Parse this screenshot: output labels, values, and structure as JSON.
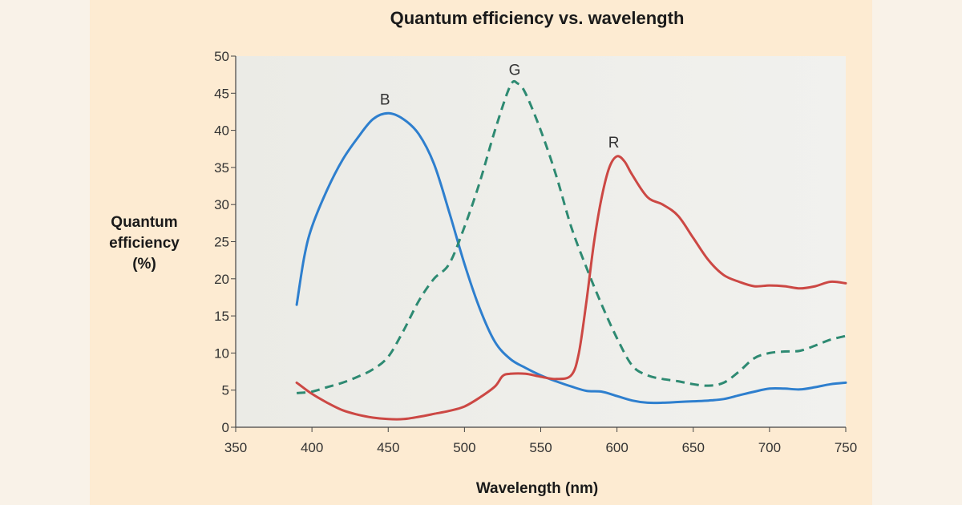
{
  "chart_data": {
    "type": "line",
    "title": "Quantum efficiency vs. wavelength",
    "xlabel": "Wavelength (nm)",
    "ylabel": [
      "Quantum",
      "efficiency",
      "(%)"
    ],
    "xlim": [
      350,
      750
    ],
    "ylim": [
      0,
      50
    ],
    "xticks": [
      350,
      400,
      450,
      500,
      550,
      600,
      650,
      700,
      750
    ],
    "yticks": [
      0,
      5,
      10,
      15,
      20,
      25,
      30,
      35,
      40,
      45,
      50
    ],
    "grid": false,
    "colors": {
      "B": "#2e7fce",
      "G": "#2e8a72",
      "R": "#cc4844",
      "plot_bg": "#eeeeea"
    },
    "series": [
      {
        "name": "B",
        "style": "solid",
        "points": [
          [
            390,
            16.5
          ],
          [
            395,
            23
          ],
          [
            400,
            27
          ],
          [
            410,
            32
          ],
          [
            420,
            36
          ],
          [
            430,
            39
          ],
          [
            440,
            41.5
          ],
          [
            450,
            42.3
          ],
          [
            460,
            41.5
          ],
          [
            470,
            39.5
          ],
          [
            480,
            35.5
          ],
          [
            490,
            29
          ],
          [
            500,
            22
          ],
          [
            510,
            16
          ],
          [
            520,
            11.5
          ],
          [
            530,
            9.2
          ],
          [
            540,
            8
          ],
          [
            550,
            7
          ],
          [
            560,
            6.2
          ],
          [
            570,
            5.5
          ],
          [
            580,
            4.9
          ],
          [
            590,
            4.8
          ],
          [
            600,
            4.2
          ],
          [
            610,
            3.6
          ],
          [
            620,
            3.3
          ],
          [
            630,
            3.3
          ],
          [
            640,
            3.4
          ],
          [
            650,
            3.5
          ],
          [
            660,
            3.6
          ],
          [
            670,
            3.8
          ],
          [
            680,
            4.3
          ],
          [
            690,
            4.8
          ],
          [
            700,
            5.2
          ],
          [
            710,
            5.2
          ],
          [
            720,
            5.1
          ],
          [
            730,
            5.4
          ],
          [
            740,
            5.8
          ],
          [
            750,
            6
          ]
        ]
      },
      {
        "name": "G",
        "style": "dashed",
        "points": [
          [
            390,
            4.6
          ],
          [
            400,
            4.8
          ],
          [
            410,
            5.4
          ],
          [
            420,
            6
          ],
          [
            430,
            6.8
          ],
          [
            440,
            7.8
          ],
          [
            450,
            9.5
          ],
          [
            460,
            13
          ],
          [
            470,
            17
          ],
          [
            480,
            20
          ],
          [
            490,
            22
          ],
          [
            500,
            27
          ],
          [
            510,
            33
          ],
          [
            520,
            40
          ],
          [
            530,
            46
          ],
          [
            535,
            46.3
          ],
          [
            540,
            45
          ],
          [
            550,
            40
          ],
          [
            560,
            34
          ],
          [
            570,
            27
          ],
          [
            580,
            21.5
          ],
          [
            590,
            16.5
          ],
          [
            600,
            12
          ],
          [
            610,
            8.3
          ],
          [
            620,
            7
          ],
          [
            630,
            6.5
          ],
          [
            640,
            6.2
          ],
          [
            650,
            5.8
          ],
          [
            660,
            5.6
          ],
          [
            670,
            6
          ],
          [
            680,
            7.5
          ],
          [
            690,
            9.3
          ],
          [
            700,
            10
          ],
          [
            710,
            10.2
          ],
          [
            720,
            10.3
          ],
          [
            730,
            11
          ],
          [
            740,
            11.8
          ],
          [
            750,
            12.3
          ]
        ]
      },
      {
        "name": "R",
        "style": "solid",
        "points": [
          [
            390,
            6
          ],
          [
            400,
            4.5
          ],
          [
            410,
            3.3
          ],
          [
            420,
            2.3
          ],
          [
            430,
            1.7
          ],
          [
            440,
            1.3
          ],
          [
            450,
            1.1
          ],
          [
            460,
            1.1
          ],
          [
            470,
            1.4
          ],
          [
            480,
            1.8
          ],
          [
            490,
            2.2
          ],
          [
            500,
            2.8
          ],
          [
            510,
            4
          ],
          [
            520,
            5.5
          ],
          [
            525,
            6.9
          ],
          [
            530,
            7.2
          ],
          [
            540,
            7.2
          ],
          [
            550,
            6.8
          ],
          [
            560,
            6.5
          ],
          [
            570,
            7
          ],
          [
            575,
            10
          ],
          [
            580,
            17
          ],
          [
            585,
            25
          ],
          [
            590,
            31
          ],
          [
            595,
            35
          ],
          [
            600,
            36.5
          ],
          [
            605,
            35.8
          ],
          [
            610,
            34
          ],
          [
            620,
            31
          ],
          [
            630,
            30
          ],
          [
            640,
            28.5
          ],
          [
            650,
            25.5
          ],
          [
            660,
            22.5
          ],
          [
            670,
            20.5
          ],
          [
            680,
            19.6
          ],
          [
            690,
            19
          ],
          [
            700,
            19.1
          ],
          [
            710,
            19
          ],
          [
            720,
            18.7
          ],
          [
            730,
            19
          ],
          [
            740,
            19.6
          ],
          [
            750,
            19.4
          ]
        ]
      }
    ]
  }
}
